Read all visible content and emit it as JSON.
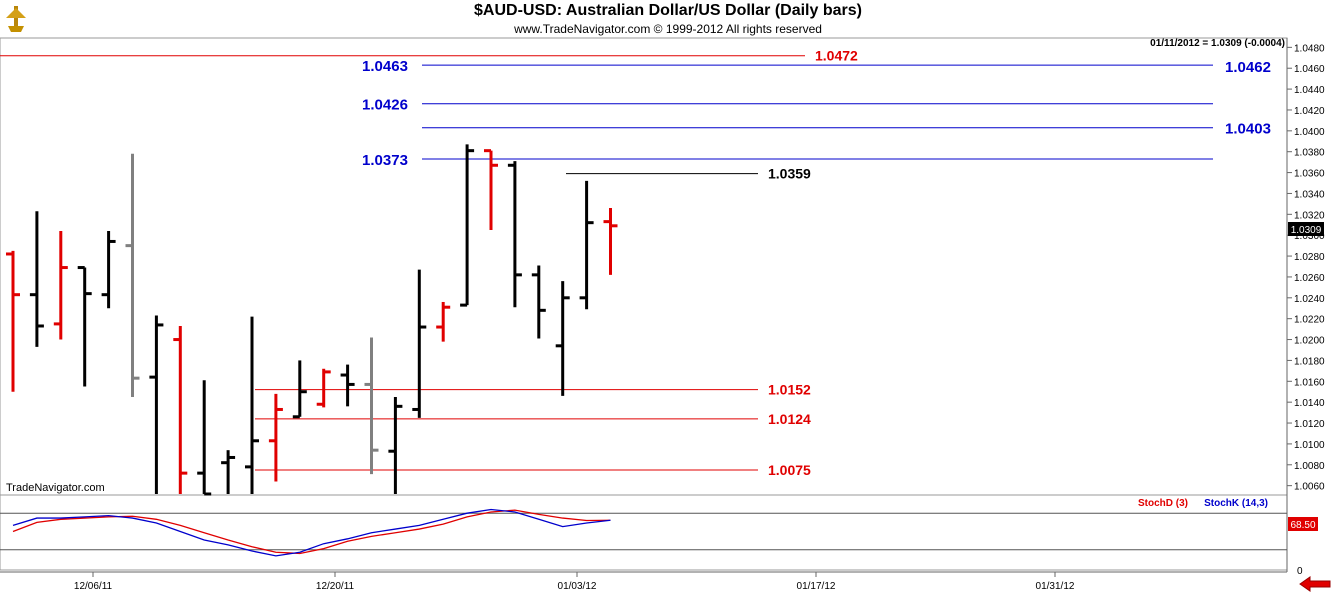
{
  "header": {
    "title": "$AUD-USD:  Australian Dollar/US Dollar  (Daily bars)",
    "subtitle": "www.TradeNavigator.com © 1999-2012 All rights reserved",
    "quote": "01/11/2012 = 1.0309 (-0.0004)",
    "watermark": "TradeNavigator.com"
  },
  "chart_data": {
    "type": "ohlc",
    "price_axis": {
      "ticks": [
        "1.0480",
        "1.0460",
        "1.0440",
        "1.0420",
        "1.0400",
        "1.0380",
        "1.0360",
        "1.0340",
        "1.0320",
        "1.0300",
        "1.0280",
        "1.0260",
        "1.0240",
        "1.0220",
        "1.0200",
        "1.0180",
        "1.0160",
        "1.0140",
        "1.0120",
        "1.0100",
        "1.0080",
        "1.0060"
      ],
      "ylim": [
        1.0052,
        1.0488
      ],
      "last_price_label": "1.0309"
    },
    "date_axis": {
      "ticks": [
        "12/06/11",
        "12/20/11",
        "01/03/12",
        "01/17/12",
        "01/31/12"
      ]
    },
    "bars": [
      {
        "o": 1.0282,
        "h": 1.0285,
        "l": 1.015,
        "c": 1.0243,
        "color": "#e00000"
      },
      {
        "o": 1.0243,
        "h": 1.0323,
        "l": 1.0193,
        "c": 1.0213,
        "color": "#000000"
      },
      {
        "o": 1.0215,
        "h": 1.0304,
        "l": 1.02,
        "c": 1.0269,
        "color": "#e00000"
      },
      {
        "o": 1.0269,
        "h": 1.0269,
        "l": 1.0155,
        "c": 1.0244,
        "color": "#000000"
      },
      {
        "o": 1.0243,
        "h": 1.0304,
        "l": 1.023,
        "c": 1.0294,
        "color": "#000000"
      },
      {
        "o": 1.029,
        "h": 1.0378,
        "l": 1.0145,
        "c": 1.0163,
        "color": "#808080"
      },
      {
        "o": 1.0164,
        "h": 1.0223,
        "l": 1.0052,
        "c": 1.0214,
        "color": "#000000"
      },
      {
        "o": 1.02,
        "h": 1.0213,
        "l": 1.0052,
        "c": 1.0072,
        "color": "#e00000"
      },
      {
        "o": 1.0072,
        "h": 1.0161,
        "l": 1.0052,
        "c": 1.0052,
        "color": "#000000"
      },
      {
        "o": 1.0082,
        "h": 1.0094,
        "l": 1.0052,
        "c": 1.0087,
        "color": "#000000"
      },
      {
        "o": 1.0078,
        "h": 1.0222,
        "l": 1.0052,
        "c": 1.0103,
        "color": "#000000"
      },
      {
        "o": 1.0103,
        "h": 1.0148,
        "l": 1.0064,
        "c": 1.0133,
        "color": "#e00000"
      },
      {
        "o": 1.0126,
        "h": 1.018,
        "l": 1.0126,
        "c": 1.015,
        "color": "#000000"
      },
      {
        "o": 1.0138,
        "h": 1.0172,
        "l": 1.0135,
        "c": 1.0169,
        "color": "#e00000"
      },
      {
        "o": 1.0166,
        "h": 1.0176,
        "l": 1.0136,
        "c": 1.0157,
        "color": "#000000"
      },
      {
        "o": 1.0157,
        "h": 1.0202,
        "l": 1.0071,
        "c": 1.0094,
        "color": "#808080"
      },
      {
        "o": 1.0093,
        "h": 1.0145,
        "l": 1.0052,
        "c": 1.0136,
        "color": "#000000"
      },
      {
        "o": 1.0133,
        "h": 1.0267,
        "l": 1.0125,
        "c": 1.0212,
        "color": "#000000"
      },
      {
        "o": 1.0212,
        "h": 1.0236,
        "l": 1.0198,
        "c": 1.0231,
        "color": "#e00000"
      },
      {
        "o": 1.0233,
        "h": 1.0387,
        "l": 1.0233,
        "c": 1.0381,
        "color": "#000000"
      },
      {
        "o": 1.0381,
        "h": 1.0381,
        "l": 1.0305,
        "c": 1.0367,
        "color": "#e00000"
      },
      {
        "o": 1.0367,
        "h": 1.0371,
        "l": 1.0231,
        "c": 1.0262,
        "color": "#000000"
      },
      {
        "o": 1.0262,
        "h": 1.0271,
        "l": 1.0201,
        "c": 1.0228,
        "color": "#000000"
      },
      {
        "o": 1.0194,
        "h": 1.0256,
        "l": 1.0146,
        "c": 1.024,
        "color": "#000000"
      },
      {
        "o": 1.024,
        "h": 1.0352,
        "l": 1.0229,
        "c": 1.0312,
        "color": "#000000"
      },
      {
        "o": 1.0313,
        "h": 1.0326,
        "l": 1.0262,
        "c": 1.0309,
        "color": "#e00000"
      }
    ],
    "levels": [
      {
        "value": 1.0472,
        "label": "1.0472",
        "color": "#e00000",
        "side": "right-of-line"
      },
      {
        "value": 1.0463,
        "label": "1.0463",
        "color": "#0000cc",
        "side": "left"
      },
      {
        "value": 1.0462,
        "label": "1.0462",
        "color": "#0000cc",
        "side": "right"
      },
      {
        "value": 1.0426,
        "label": "1.0426",
        "color": "#0000cc",
        "side": "left"
      },
      {
        "value": 1.0403,
        "label": "1.0403",
        "color": "#0000cc",
        "side": "right"
      },
      {
        "value": 1.0373,
        "label": "1.0373",
        "color": "#0000cc",
        "side": "left"
      },
      {
        "value": 1.0359,
        "label": "1.0359",
        "color": "#000000",
        "side": "right-of-line"
      },
      {
        "value": 1.0152,
        "label": "1.0152",
        "color": "#e00000",
        "side": "right-of-line"
      },
      {
        "value": 1.0124,
        "label": "1.0124",
        "color": "#e00000",
        "side": "right-of-line"
      },
      {
        "value": 1.0075,
        "label": "1.0075",
        "color": "#e00000",
        "side": "right-of-line"
      }
    ],
    "stochastic": {
      "labels": {
        "stoch_d": "StochD (3)",
        "stoch_k": "StochK (14,3)",
        "value": "68.50",
        "zero": "0"
      },
      "colors": {
        "stoch_d": "#e00000",
        "stoch_k": "#0000cc"
      },
      "ylim": [
        0,
        100
      ],
      "stoch_d": [
        50,
        65,
        70,
        72,
        74,
        75,
        70,
        60,
        48,
        36,
        25,
        16,
        14,
        22,
        34,
        42,
        48,
        54,
        62,
        74,
        82,
        85,
        78,
        72,
        68,
        68.5
      ],
      "stoch_k": [
        60,
        72,
        72,
        74,
        76,
        72,
        64,
        50,
        36,
        28,
        18,
        10,
        16,
        30,
        38,
        48,
        54,
        60,
        70,
        80,
        86,
        82,
        70,
        58,
        64,
        68.5
      ]
    }
  }
}
